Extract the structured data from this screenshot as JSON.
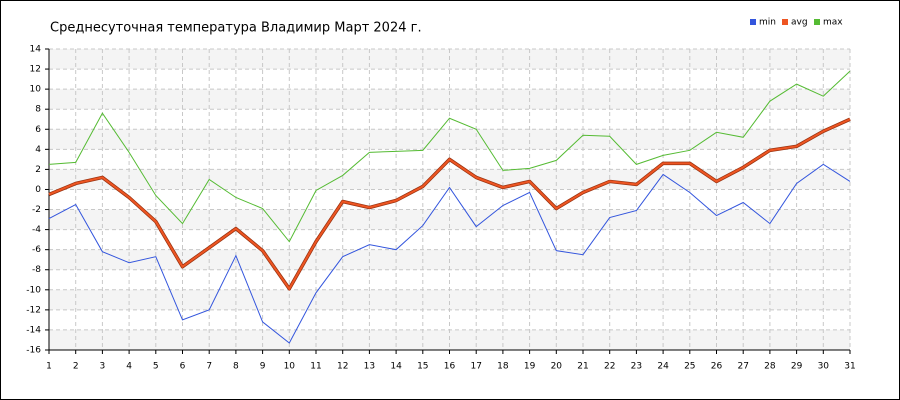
{
  "chart_data": {
    "type": "line",
    "title": "Среднесуточная температура Владимир  Март 2024 г.",
    "x": [
      1,
      2,
      3,
      4,
      5,
      6,
      7,
      8,
      9,
      10,
      11,
      12,
      13,
      14,
      15,
      16,
      17,
      18,
      19,
      20,
      21,
      22,
      23,
      24,
      25,
      26,
      27,
      28,
      29,
      30,
      31
    ],
    "xlim": [
      1,
      31
    ],
    "xticks": [
      1,
      2,
      3,
      4,
      5,
      6,
      7,
      8,
      9,
      10,
      11,
      12,
      13,
      14,
      15,
      16,
      17,
      18,
      19,
      20,
      21,
      22,
      23,
      24,
      25,
      26,
      27,
      28,
      29,
      30,
      31
    ],
    "ylim": [
      -16,
      14
    ],
    "yticks": [
      -16,
      -14,
      -12,
      -10,
      -8,
      -6,
      -4,
      -2,
      0,
      2,
      4,
      6,
      8,
      10,
      12,
      14
    ],
    "grid": true,
    "legend": "top-right",
    "series": [
      {
        "name": "min",
        "color": "#3355dd",
        "values": [
          -2.9,
          -1.5,
          -6.2,
          -7.3,
          -6.7,
          -13.0,
          -12.0,
          -6.6,
          -13.2,
          -15.3,
          -10.3,
          -6.7,
          -5.5,
          -6.0,
          -3.6,
          0.2,
          -3.7,
          -1.6,
          -0.3,
          -6.1,
          -6.5,
          -2.8,
          -2.1,
          1.5,
          -0.3,
          -2.6,
          -1.3,
          -3.4,
          0.6,
          2.5,
          0.8
        ]
      },
      {
        "name": "avg",
        "color": "#ee5522",
        "values": [
          -0.5,
          0.6,
          1.2,
          -0.8,
          -3.2,
          -7.7,
          -5.8,
          -3.9,
          -6.1,
          -9.9,
          -5.2,
          -1.2,
          -1.8,
          -1.1,
          0.3,
          3.0,
          1.2,
          0.2,
          0.8,
          -1.9,
          -0.3,
          0.8,
          0.5,
          2.6,
          2.6,
          0.8,
          2.2,
          3.9,
          4.3,
          5.8,
          7.0
        ]
      },
      {
        "name": "max",
        "color": "#55bb33",
        "values": [
          2.5,
          2.7,
          7.6,
          3.7,
          -0.6,
          -3.4,
          1.0,
          -0.8,
          -1.9,
          -5.2,
          -0.1,
          1.4,
          3.7,
          3.8,
          3.9,
          7.1,
          6.0,
          1.9,
          2.1,
          2.9,
          5.4,
          5.3,
          2.5,
          3.4,
          3.9,
          5.7,
          5.2,
          8.8,
          10.5,
          9.3,
          11.8
        ]
      }
    ]
  }
}
